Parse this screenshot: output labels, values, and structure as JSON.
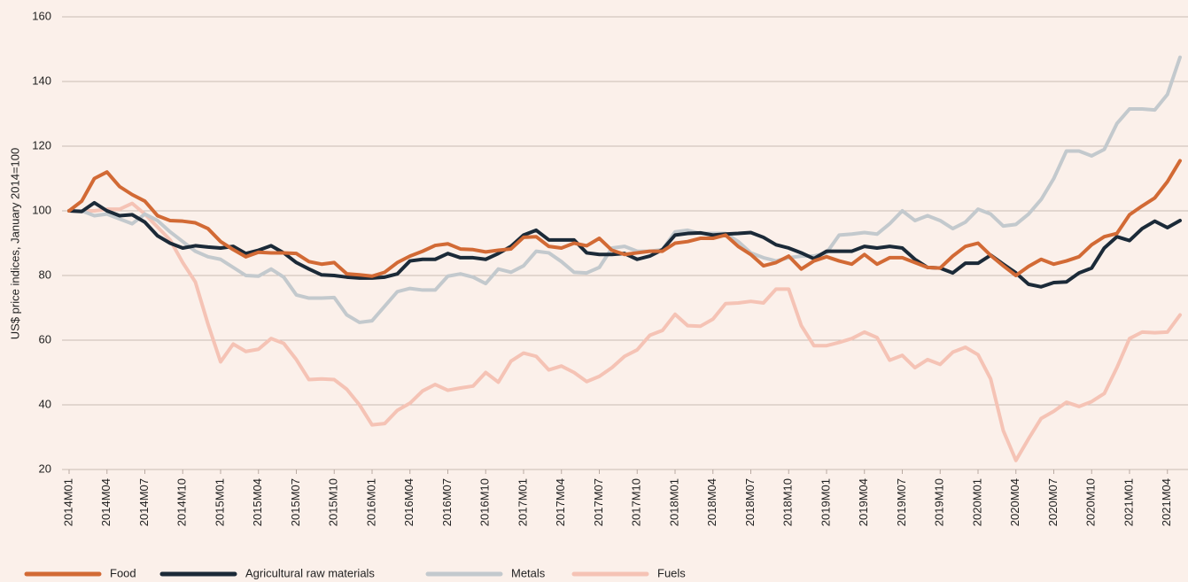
{
  "chart_data": {
    "type": "line",
    "ylabel": "US$ price indices, January 2014=100",
    "categories": [
      "2014M01",
      null,
      null,
      "2014M04",
      null,
      null,
      "2014M07",
      null,
      null,
      "2014M10",
      null,
      null,
      "2015M01",
      null,
      null,
      "2015M04",
      null,
      null,
      "2015M07",
      null,
      null,
      "2015M10",
      null,
      null,
      "2016M01",
      null,
      null,
      "2016M04",
      null,
      null,
      "2016M07",
      null,
      null,
      "2016M10",
      null,
      null,
      "2017M01",
      null,
      null,
      "2017M04",
      null,
      null,
      "2017M07",
      null,
      null,
      "2017M10",
      null,
      null,
      "2018M01",
      null,
      null,
      "2018M04",
      null,
      null,
      "2018M07",
      null,
      null,
      "2018M10",
      null,
      null,
      "2019M01",
      null,
      null,
      "2019M04",
      null,
      null,
      "2019M07",
      null,
      null,
      "2019M10",
      null,
      null,
      "2020M01",
      null,
      null,
      "2020M04",
      null,
      null,
      "2020M07",
      null,
      null,
      "2020M10",
      null,
      null,
      "2021M01",
      null,
      null,
      "2021M04",
      null
    ],
    "series": [
      {
        "name": "Food",
        "color": "#d26a35",
        "values": [
          100,
          103,
          110,
          112,
          107.5,
          105,
          103,
          98.5,
          97,
          96.8,
          96.3,
          94.5,
          90.5,
          88,
          85.8,
          87.2,
          87,
          87,
          86.8,
          84.3,
          83.5,
          84,
          80.5,
          80.2,
          79.8,
          81,
          84,
          86,
          87.5,
          89.3,
          89.8,
          88.2,
          88,
          87.3,
          87.8,
          88.2,
          91.8,
          92,
          89,
          88.5,
          90,
          89.2,
          91.5,
          87.8,
          86.5,
          87,
          87.5,
          87.5,
          90,
          90.5,
          91.5,
          91.5,
          92.5,
          89,
          86.5,
          83,
          84,
          86,
          82,
          84.5,
          85.8,
          84.5,
          83.5,
          86.5,
          83.5,
          85.5,
          85.5,
          84,
          82.5,
          82.3,
          86,
          89,
          90,
          86.2,
          83,
          80,
          82.8,
          85,
          83.5,
          84.5,
          85.8,
          89.5,
          92,
          93,
          98.8,
          101.5,
          104,
          109,
          115.5
        ]
      },
      {
        "name": "Agricultural raw materials",
        "color": "#1b2a38",
        "values": [
          100,
          99.8,
          102.5,
          100,
          98.5,
          98.8,
          96.5,
          92.3,
          90,
          88.5,
          89.2,
          88.8,
          88.5,
          89,
          86.8,
          87.8,
          89.2,
          87,
          84,
          82,
          80.2,
          80,
          79.5,
          79.2,
          79.2,
          79.5,
          80.5,
          84.5,
          85,
          85,
          86.8,
          85.5,
          85.5,
          85,
          86.8,
          89,
          92.5,
          94,
          91,
          91,
          91,
          87,
          86.5,
          86.5,
          86.8,
          85,
          86,
          88,
          92.5,
          93,
          93.2,
          92.5,
          92.8,
          93,
          93.3,
          91.8,
          89.5,
          88.5,
          87,
          85.2,
          87.5,
          87.5,
          87.5,
          89,
          88.5,
          89,
          88.5,
          85,
          82.5,
          82.3,
          80.8,
          83.8,
          83.8,
          86.3,
          83.5,
          80.8,
          77.3,
          76.5,
          77.8,
          78,
          80.8,
          82.3,
          88.5,
          92,
          90.8,
          94.5,
          96.8,
          94.8,
          97
        ]
      },
      {
        "name": "Metals",
        "color": "#c3c9cd",
        "values": [
          100,
          100,
          98.5,
          99,
          97.5,
          96,
          99,
          97,
          93.5,
          90.5,
          87.5,
          85.8,
          85,
          82.5,
          80,
          79.8,
          82,
          79.5,
          74,
          73,
          73,
          73.2,
          67.8,
          65.5,
          66,
          70.5,
          75,
          76,
          75.5,
          75.5,
          79.8,
          80.5,
          79.5,
          77.5,
          82,
          81,
          83,
          87.5,
          87,
          84.3,
          81,
          80.8,
          82.5,
          88.5,
          89,
          87.5,
          87.5,
          88,
          93.5,
          94,
          93,
          93,
          93,
          90.5,
          87,
          85.5,
          84.5,
          85.5,
          86,
          86,
          87,
          92.5,
          92.8,
          93.3,
          92.8,
          96,
          100,
          97,
          98.5,
          97,
          94.5,
          96.5,
          100.5,
          99,
          95.3,
          95.8,
          99,
          103.5,
          110,
          118.5,
          118.5,
          117,
          119,
          127,
          131.5,
          131.5,
          131.2,
          136,
          147.5
        ]
      },
      {
        "name": "Fuels",
        "color": "#f5c3b5",
        "values": [
          100,
          100,
          100,
          100.5,
          100.5,
          102.3,
          99,
          95,
          91,
          84,
          78,
          65,
          53.3,
          58.8,
          56.5,
          57.2,
          60.5,
          59,
          54,
          47.8,
          48,
          47.8,
          44.8,
          40,
          33.8,
          34.2,
          38.3,
          40.5,
          44.3,
          46.3,
          44.5,
          45.2,
          45.8,
          50,
          47,
          53.5,
          56,
          55,
          50.8,
          52,
          50,
          47.2,
          48.8,
          51.5,
          55,
          57,
          61.5,
          63,
          68,
          64.5,
          64.3,
          66.5,
          71.3,
          71.5,
          72,
          71.5,
          75.8,
          75.8,
          64.5,
          58.3,
          58.3,
          59.3,
          60.5,
          62.5,
          60.8,
          53.8,
          55.3,
          51.5,
          54,
          52.5,
          56.3,
          57.8,
          55.5,
          48,
          32,
          22.8,
          29.5,
          35.8,
          38,
          40.8,
          39.5,
          41,
          43.5,
          51.5,
          60.5,
          62.5,
          62.3,
          62.5,
          67.8
        ]
      }
    ],
    "ylim": [
      20,
      160
    ],
    "yticks": [
      20,
      40,
      60,
      80,
      100,
      120,
      140,
      160
    ],
    "grid": true,
    "legend": "bottom"
  }
}
